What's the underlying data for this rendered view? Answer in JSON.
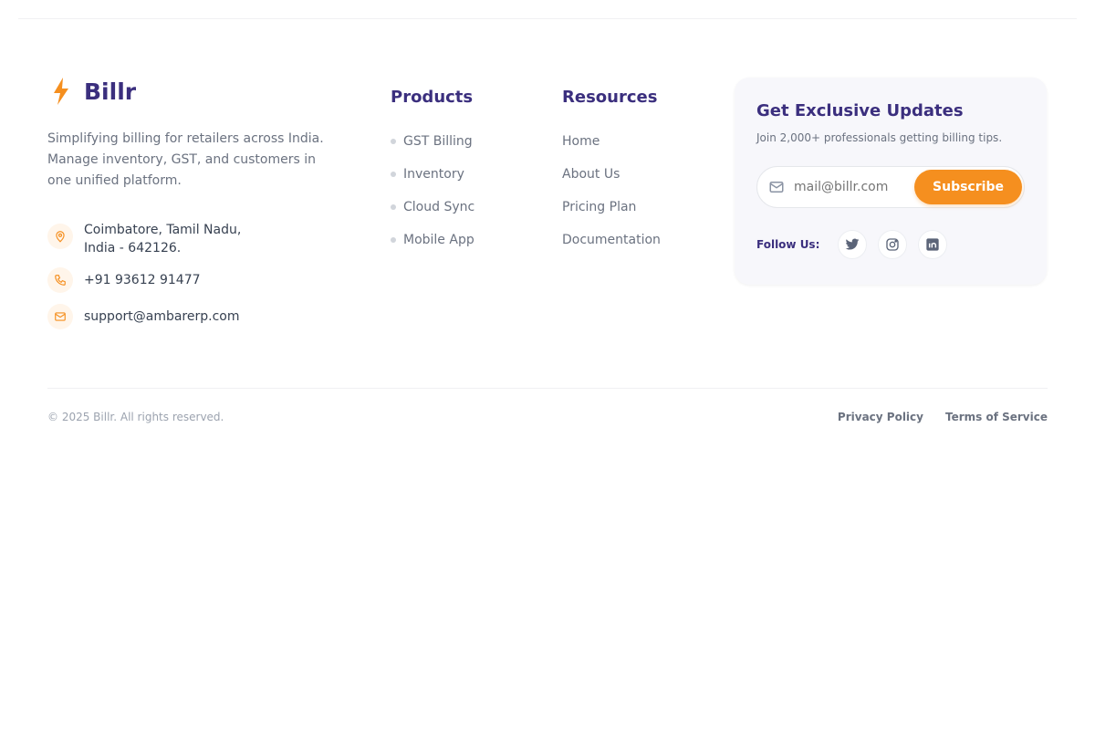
{
  "brand": {
    "name": "Billr",
    "description": "Simplifying billing for retailers across India. Manage inventory, GST, and customers in one unified platform."
  },
  "contact": {
    "address_line1": "Coimbatore, Tamil Nadu,",
    "address_line2": "India - 642126.",
    "phone": "+91 93612 91477",
    "email": "support@ambarerp.com"
  },
  "products": {
    "title": "Products",
    "items": [
      "GST Billing",
      "Inventory",
      "Cloud Sync",
      "Mobile App"
    ]
  },
  "resources": {
    "title": "Resources",
    "items": [
      "Home",
      "About Us",
      "Pricing Plan",
      "Documentation"
    ]
  },
  "newsletter": {
    "title": "Get Exclusive Updates",
    "subtitle": "Join 2,000+ professionals getting billing tips.",
    "placeholder": "mail@billr.com",
    "button": "Subscribe",
    "follow": "Follow Us:",
    "socials": [
      "twitter-icon",
      "instagram-icon",
      "linkedin-icon"
    ]
  },
  "footer": {
    "copyright": "© 2025 Billr. All rights reserved.",
    "privacy": "Privacy Policy",
    "terms": "Terms of Service"
  },
  "colors": {
    "accent": "#f58f1f",
    "brand": "#3b2f7e"
  }
}
